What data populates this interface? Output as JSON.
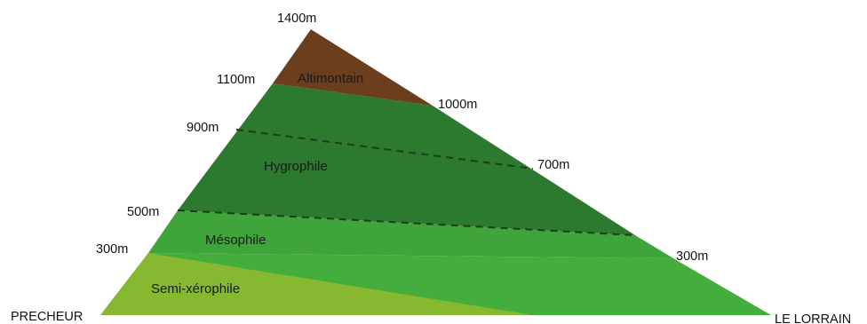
{
  "places": {
    "west": "PRECHEUR",
    "east": "LE LORRAIN"
  },
  "summit": {
    "altitude": "1400m"
  },
  "altitudes_west": [
    "1100m",
    "900m",
    "500m",
    "300m"
  ],
  "altitudes_east": [
    "1000m",
    "700m",
    "300m"
  ],
  "zones": [
    {
      "name": "Altimontain",
      "color": "#6b3e1d"
    },
    {
      "name": "Hygrophile",
      "color": "#2b7a2f"
    },
    {
      "name": "Mésophile",
      "color": "#3fa53a"
    },
    {
      "name": "Semi-xérophile",
      "color": "#86b92f"
    }
  ],
  "colors": {
    "lower_green": "#45ad3d",
    "dashed_line": "#1c3d1c"
  }
}
